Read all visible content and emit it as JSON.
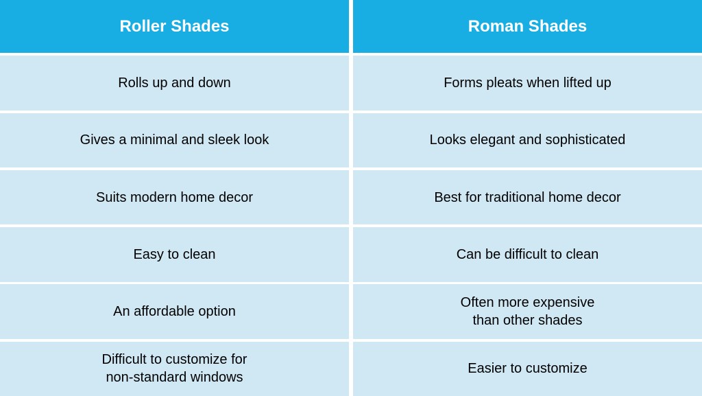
{
  "table": {
    "type": "table",
    "columns": [
      {
        "label": "Roller Shades"
      },
      {
        "label": "Roman Shades"
      }
    ],
    "rows": [
      [
        "Rolls up and down",
        "Forms pleats when lifted up"
      ],
      [
        "Gives a minimal and sleek look",
        "Looks elegant and sophisticated"
      ],
      [
        "Suits modern home decor",
        "Best for traditional home decor"
      ],
      [
        "Easy to clean",
        "Can be difficult to clean"
      ],
      [
        "An affordable option",
        "Often more expensive\nthan other shades"
      ],
      [
        "Difficult to customize for\nnon-standard windows",
        "Easier to customize"
      ]
    ],
    "header_bg": "#18aee4",
    "header_text_color": "#ffffff",
    "body_bg": "#cfe8f4",
    "body_text_color": "#000000",
    "gap_color": "#ffffff",
    "header_fontsize": 24,
    "body_fontsize": 20,
    "header_fontweight": 700,
    "body_fontweight": 400
  }
}
